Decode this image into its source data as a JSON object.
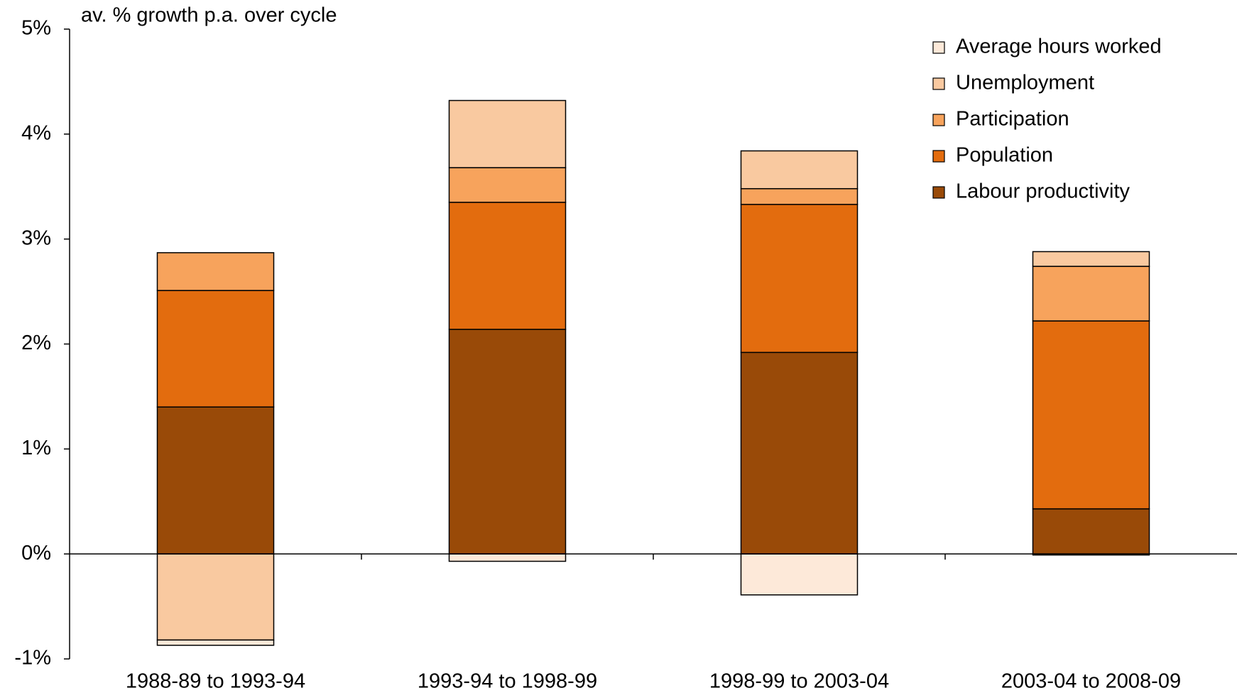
{
  "chart_data": {
    "type": "stacked-bar",
    "axis_label": "av. % growth p.a.  over cycle",
    "categories": [
      "1988-89 to 1993-94",
      "1993-94 to 1998-99",
      "1998-99 to 2003-04",
      "2003-04 to 2008-09"
    ],
    "series": [
      {
        "name": "Labour productivity",
        "color": "#994a08",
        "values": [
          1.4,
          2.14,
          1.92,
          0.43
        ]
      },
      {
        "name": "Population",
        "color": "#e36c0e",
        "values": [
          1.11,
          1.21,
          1.41,
          1.79
        ]
      },
      {
        "name": "Participation",
        "color": "#f7a35c",
        "values": [
          0.36,
          0.33,
          0.15,
          0.52
        ]
      },
      {
        "name": "Unemployment",
        "color": "#f9c9a0",
        "values": [
          -0.82,
          0.64,
          0.36,
          0.14
        ]
      },
      {
        "name": "Average hours worked",
        "color": "#fde9d9",
        "values": [
          -0.05,
          -0.07,
          -0.39,
          -0.01
        ]
      }
    ],
    "ylim": [
      -1,
      5
    ],
    "yticks": [
      {
        "value": -1,
        "label": "-1%"
      },
      {
        "value": 0,
        "label": "0%"
      },
      {
        "value": 1,
        "label": "1%"
      },
      {
        "value": 2,
        "label": "2%"
      },
      {
        "value": 3,
        "label": "3%"
      },
      {
        "value": 4,
        "label": "4%"
      },
      {
        "value": 5,
        "label": "5%"
      }
    ],
    "legend": "top-right"
  }
}
